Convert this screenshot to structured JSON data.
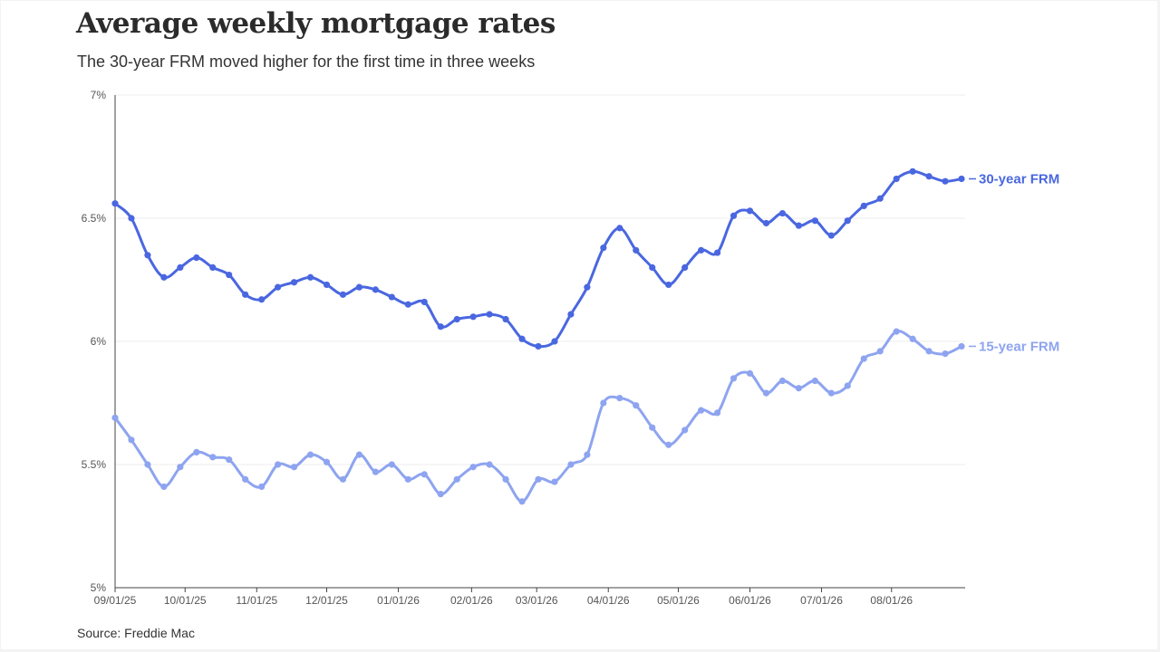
{
  "header": {
    "title": "Average weekly mortgage rates",
    "subtitle": "The 30-year FRM moved higher for the first time in three weeks"
  },
  "footer": {
    "source": "Source: Freddie Mac"
  },
  "chart_data": {
    "type": "line",
    "title": "Average weekly mortgage rates",
    "subtitle": "The 30-year FRM moved higher for the first time in three weeks",
    "xlabel": "",
    "ylabel": "",
    "ylim": [
      5,
      7
    ],
    "y_ticks": [
      5,
      5.5,
      6,
      6.5,
      7
    ],
    "y_tick_labels": [
      "5%",
      "5.5%",
      "6%",
      "6.5%",
      "7%"
    ],
    "x_tick_labels": [
      "09/01/25",
      "10/01/25",
      "11/01/25",
      "12/01/25",
      "01/01/26",
      "02/01/26",
      "03/01/26",
      "04/01/26",
      "05/01/26",
      "06/01/26",
      "07/01/26",
      "08/01/26"
    ],
    "x_tick_positions": [
      0,
      4.3,
      8.7,
      13,
      17.4,
      21.9,
      25.9,
      30.3,
      34.6,
      39,
      43.4,
      47.7
    ],
    "grid": "horizontal",
    "legend": "end-of-line labels",
    "series": [
      {
        "name": "30-year FRM",
        "color": "#4a67e0",
        "values": [
          6.56,
          6.5,
          6.35,
          6.26,
          6.3,
          6.34,
          6.3,
          6.27,
          6.19,
          6.17,
          6.22,
          6.24,
          6.26,
          6.23,
          6.19,
          6.22,
          6.21,
          6.18,
          6.15,
          6.16,
          6.06,
          6.09,
          6.1,
          6.11,
          6.09,
          6.01,
          5.98,
          6.0,
          6.11,
          6.22,
          6.38,
          6.46,
          6.37,
          6.3,
          6.23,
          6.3,
          6.37,
          6.36,
          6.51,
          6.53,
          6.48,
          6.52,
          6.47,
          6.49,
          6.43,
          6.49,
          6.55,
          6.58,
          6.66,
          6.69,
          6.67,
          6.65,
          6.66
        ]
      },
      {
        "name": "15-year FRM",
        "color": "#8ea4f0",
        "values": [
          5.69,
          5.6,
          5.5,
          5.41,
          5.49,
          5.55,
          5.53,
          5.52,
          5.44,
          5.41,
          5.5,
          5.49,
          5.54,
          5.51,
          5.44,
          5.54,
          5.47,
          5.5,
          5.44,
          5.46,
          5.38,
          5.44,
          5.49,
          5.5,
          5.44,
          5.35,
          5.44,
          5.43,
          5.5,
          5.54,
          5.75,
          5.77,
          5.74,
          5.65,
          5.58,
          5.64,
          5.72,
          5.71,
          5.85,
          5.87,
          5.79,
          5.84,
          5.81,
          5.84,
          5.79,
          5.82,
          5.93,
          5.96,
          6.04,
          6.01,
          5.96,
          5.95,
          5.98
        ]
      }
    ]
  }
}
